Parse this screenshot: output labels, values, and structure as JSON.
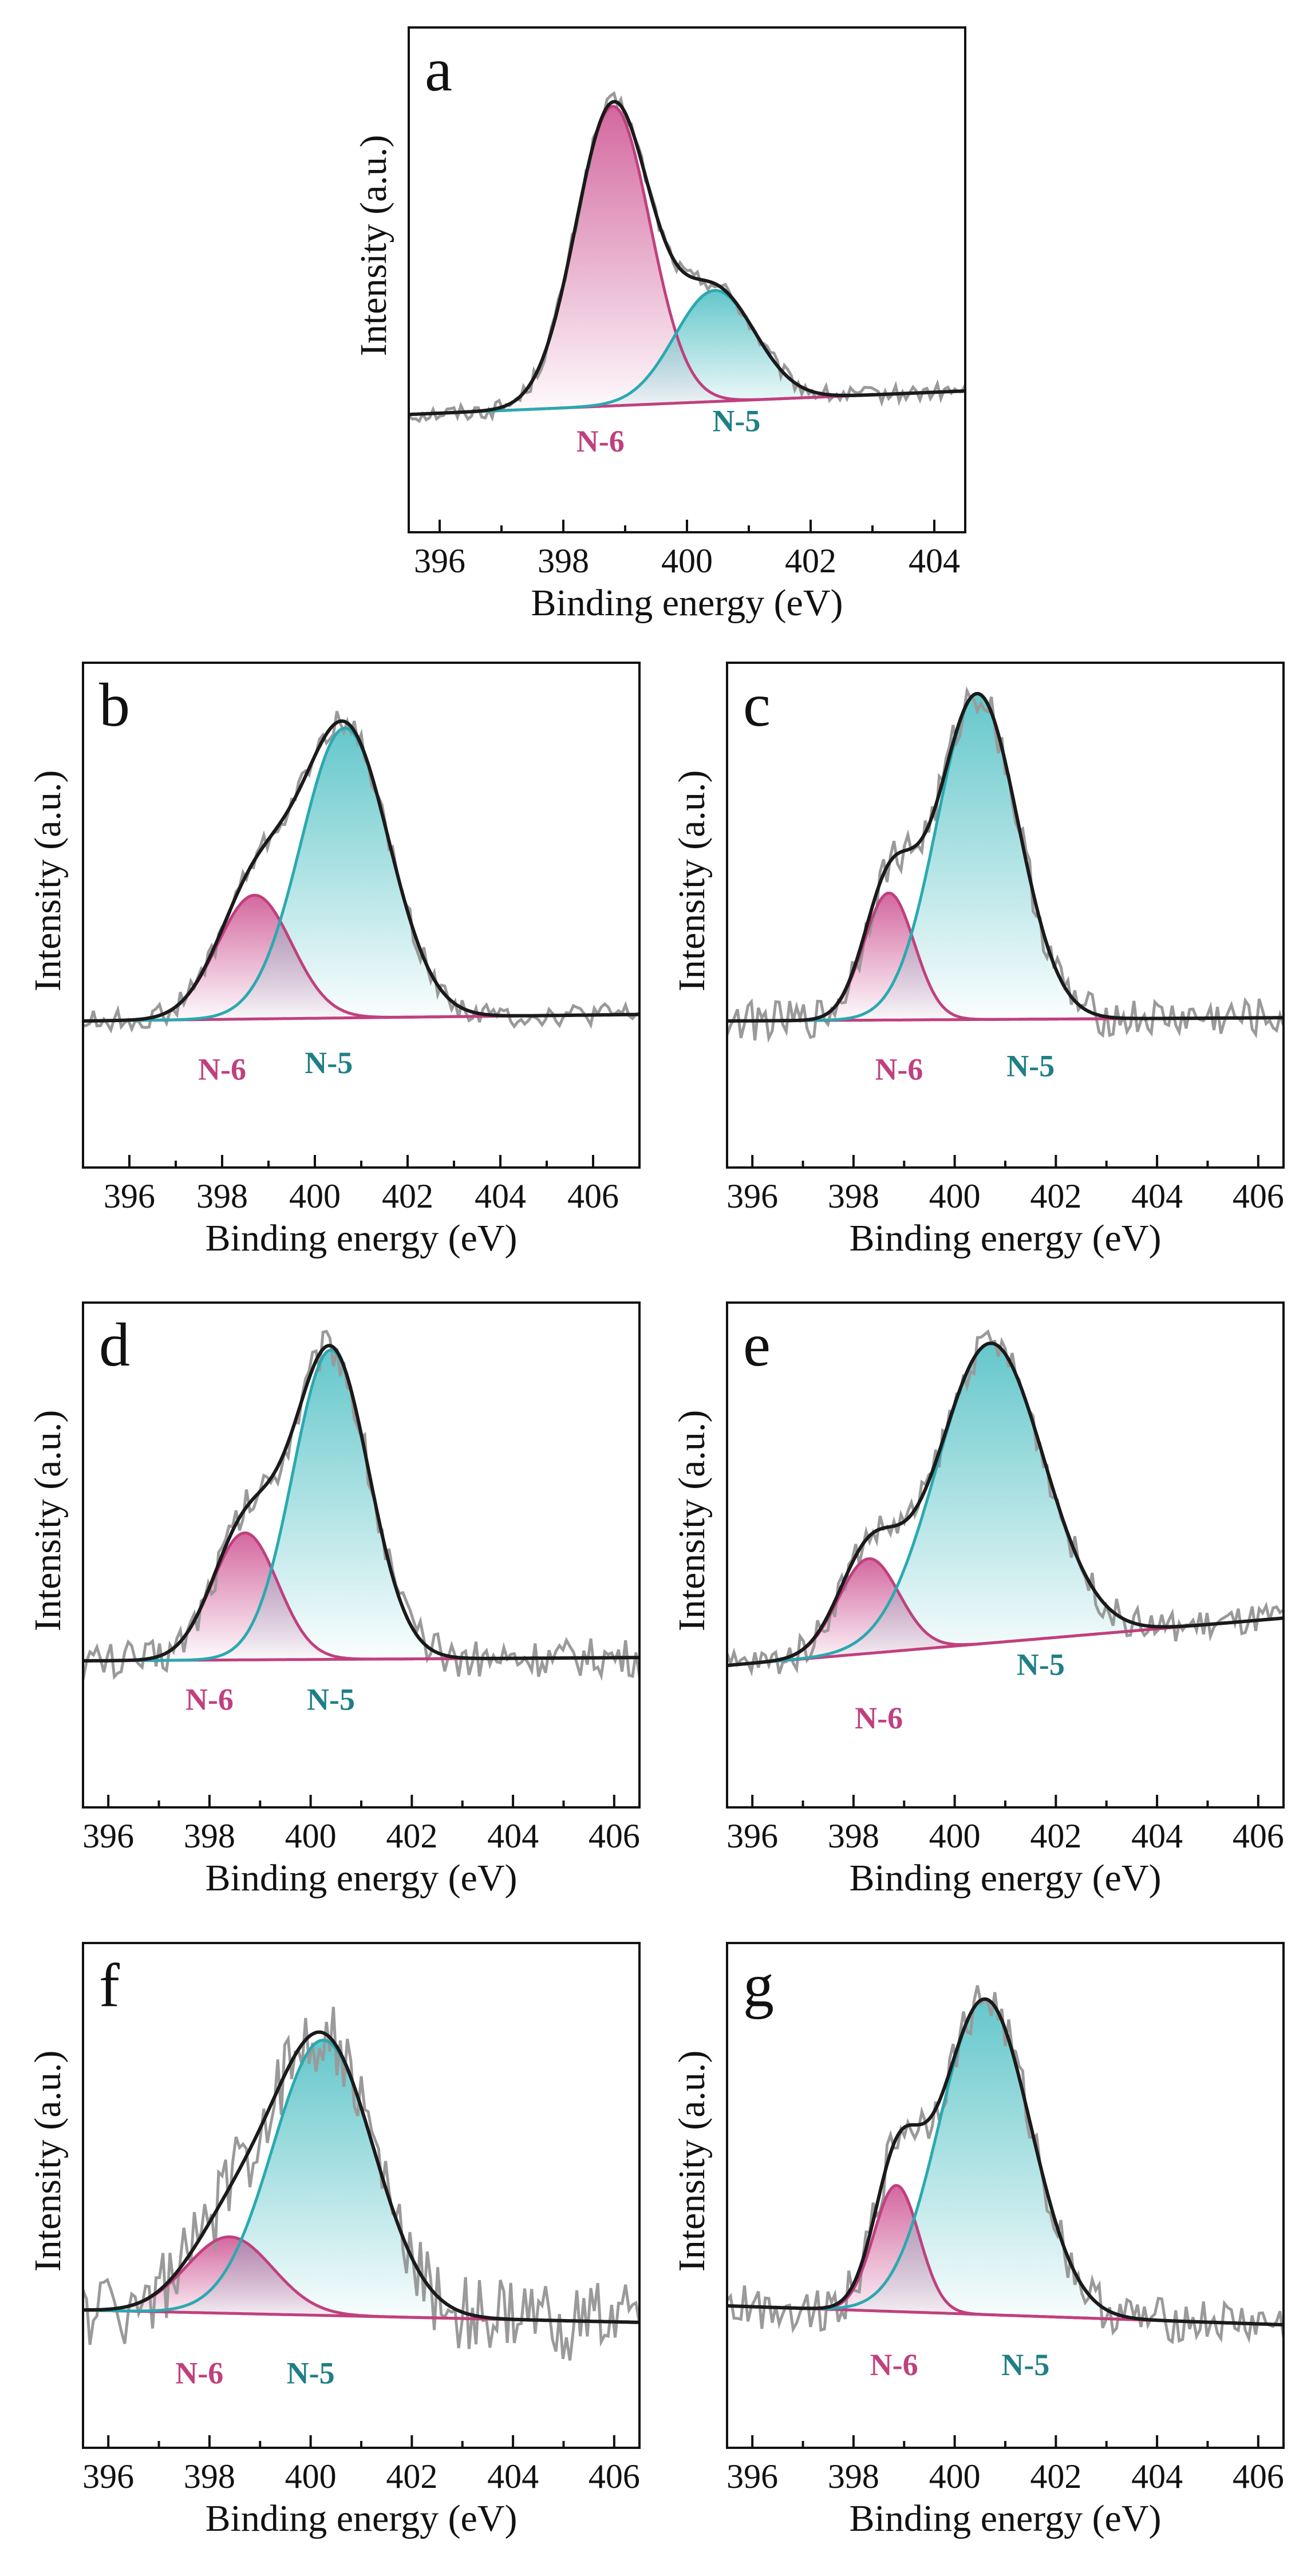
{
  "figure": {
    "description_free": true,
    "colors": {
      "n6": "#c0407e",
      "n5": "#2aa9b0",
      "n5_text": "#1f7f86",
      "n6_fill": "#d1609a",
      "n5_fill": "#5cc4c8",
      "raw": "#9a9a9a",
      "fit": "#1a1a1a",
      "baseline": "#c0407e"
    }
  },
  "chart_data": [
    {
      "type": "line",
      "panel": "a",
      "xlabel": "Binding energy (eV)",
      "ylabel": "Intensity (a.u.)",
      "xlim": [
        395.5,
        404.5
      ],
      "ylim": [
        -0.35,
        1.15
      ],
      "xticks": [
        396,
        398,
        400,
        402,
        404
      ],
      "xticklabels": [
        "396",
        "398",
        "400",
        "402",
        "404"
      ],
      "series": [
        {
          "name": "N-6",
          "center": 398.8,
          "sigma": 0.6,
          "amplitude": 0.89
        },
        {
          "name": "N-5",
          "center": 400.45,
          "sigma": 0.65,
          "amplitude": 0.33
        }
      ],
      "baseline": [
        0,
        0.07
      ],
      "noise": 0.025,
      "labels": [
        {
          "text": "N-6",
          "x": 398.6,
          "y": -0.11
        },
        {
          "text": "N-5",
          "x": 400.8,
          "y": -0.05
        }
      ]
    },
    {
      "type": "line",
      "panel": "b",
      "xlabel": "Binding energy (eV)",
      "ylabel": "Intensity (a.u.)",
      "xlim": [
        395,
        407
      ],
      "ylim": [
        -0.45,
        1.1
      ],
      "xticks": [
        396,
        398,
        400,
        402,
        404,
        406
      ],
      "xticklabels": [
        "396",
        "398",
        "400",
        "402",
        "404",
        "406"
      ],
      "series": [
        {
          "name": "N-6",
          "center": 398.7,
          "sigma": 0.8,
          "amplitude": 0.38
        },
        {
          "name": "N-5",
          "center": 400.65,
          "sigma": 0.95,
          "amplitude": 0.89
        }
      ],
      "baseline": [
        0,
        0.02
      ],
      "noise": 0.035,
      "labels": [
        {
          "text": "N-6",
          "x": 398.0,
          "y": -0.18
        },
        {
          "text": "N-5",
          "x": 400.3,
          "y": -0.16
        }
      ]
    },
    {
      "type": "line",
      "panel": "c",
      "xlabel": "Binding energy (eV)",
      "ylabel": "Intensity (a.u.)",
      "xlim": [
        395.5,
        406.5
      ],
      "ylim": [
        -0.45,
        1.1
      ],
      "xticks": [
        396,
        398,
        400,
        402,
        404,
        406
      ],
      "xticklabels": [
        "396",
        "398",
        "400",
        "402",
        "404",
        "406"
      ],
      "series": [
        {
          "name": "N-6",
          "center": 398.7,
          "sigma": 0.5,
          "amplitude": 0.39
        },
        {
          "name": "N-5",
          "center": 400.45,
          "sigma": 0.8,
          "amplitude": 1.0
        }
      ],
      "baseline": [
        0,
        0.01
      ],
      "noise": 0.06,
      "labels": [
        {
          "text": "N-6",
          "x": 398.9,
          "y": -0.18
        },
        {
          "text": "N-5",
          "x": 401.5,
          "y": -0.17
        }
      ]
    },
    {
      "type": "line",
      "panel": "d",
      "xlabel": "Binding energy (eV)",
      "ylabel": "Intensity (a.u.)",
      "xlim": [
        395.5,
        406.5
      ],
      "ylim": [
        -0.45,
        1.1
      ],
      "xticks": [
        396,
        398,
        400,
        402,
        404,
        406
      ],
      "xticklabels": [
        "396",
        "398",
        "400",
        "402",
        "404",
        "406"
      ],
      "series": [
        {
          "name": "N-6",
          "center": 398.7,
          "sigma": 0.65,
          "amplitude": 0.39
        },
        {
          "name": "N-5",
          "center": 400.4,
          "sigma": 0.75,
          "amplitude": 0.95
        }
      ],
      "baseline": [
        0,
        0.01
      ],
      "noise": 0.06,
      "labels": [
        {
          "text": "N-6",
          "x": 398.0,
          "y": -0.15
        },
        {
          "text": "N-5",
          "x": 400.4,
          "y": -0.15
        }
      ]
    },
    {
      "type": "line",
      "panel": "e",
      "xlabel": "Binding energy (eV)",
      "ylabel": "Intensity (a.u.)",
      "xlim": [
        395.5,
        406.5
      ],
      "ylim": [
        -0.45,
        1.15
      ],
      "xticks": [
        396,
        398,
        400,
        402,
        404,
        406
      ],
      "xticklabels": [
        "396",
        "398",
        "400",
        "402",
        "404",
        "406"
      ],
      "series": [
        {
          "name": "N-6",
          "center": 398.3,
          "sigma": 0.6,
          "amplitude": 0.3
        },
        {
          "name": "N-5",
          "center": 400.7,
          "sigma": 1.05,
          "amplitude": 0.95
        }
      ],
      "baseline": [
        0,
        0.15
      ],
      "noise": 0.05,
      "labels": [
        {
          "text": "N-6",
          "x": 398.5,
          "y": -0.2
        },
        {
          "text": "N-5",
          "x": 401.7,
          "y": -0.03
        }
      ]
    },
    {
      "type": "line",
      "panel": "f",
      "xlabel": "Binding energy (eV)",
      "ylabel": "Intensity (a.u.)",
      "xlim": [
        395.5,
        406.5
      ],
      "ylim": [
        -0.45,
        1.2
      ],
      "xticks": [
        396,
        398,
        400,
        402,
        404,
        406
      ],
      "xticklabels": [
        "396",
        "398",
        "400",
        "402",
        "404",
        "406"
      ],
      "series": [
        {
          "name": "N-6",
          "center": 398.4,
          "sigma": 0.85,
          "amplitude": 0.25
        },
        {
          "name": "N-5",
          "center": 400.25,
          "sigma": 1.0,
          "amplitude": 0.9
        }
      ],
      "baseline": [
        0,
        -0.04
      ],
      "noise": 0.13,
      "labels": [
        {
          "text": "N-6",
          "x": 397.8,
          "y": -0.24
        },
        {
          "text": "N-5",
          "x": 400.0,
          "y": -0.24
        }
      ]
    },
    {
      "type": "line",
      "panel": "g",
      "xlabel": "Binding energy (eV)",
      "ylabel": "Intensity (a.u.)",
      "xlim": [
        395.5,
        406.5
      ],
      "ylim": [
        -0.45,
        1.15
      ],
      "xticks": [
        396,
        398,
        400,
        402,
        404,
        406
      ],
      "xticklabels": [
        "396",
        "398",
        "400",
        "402",
        "404",
        "406"
      ],
      "series": [
        {
          "name": "N-6",
          "center": 398.85,
          "sigma": 0.45,
          "amplitude": 0.4
        },
        {
          "name": "N-5",
          "center": 400.6,
          "sigma": 0.9,
          "amplitude": 1.0
        }
      ],
      "baseline": [
        0,
        -0.06
      ],
      "noise": 0.07,
      "labels": [
        {
          "text": "N-6",
          "x": 398.8,
          "y": -0.22
        },
        {
          "text": "N-5",
          "x": 401.4,
          "y": -0.22
        }
      ]
    }
  ]
}
